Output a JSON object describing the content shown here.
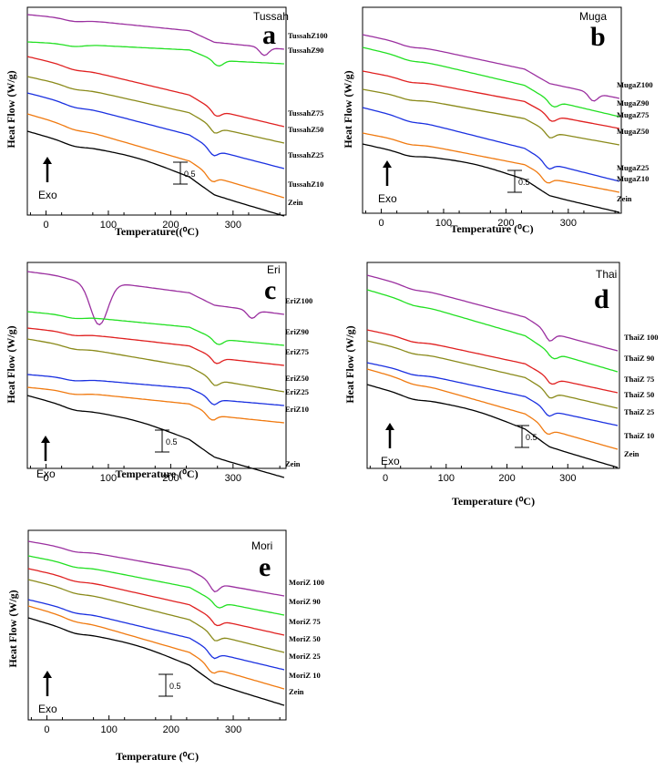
{
  "figure": {
    "description_units": {
      "x": "Temperature (°C)",
      "y": "Heat Flow (W/g)"
    }
  },
  "chart_data": [
    {
      "type": "line",
      "panel": "a",
      "title": "Tussah",
      "xlabel": "Temperature((⁰C)",
      "ylabel": "Heat Flow (W/g)",
      "xlim": [
        -30,
        385
      ],
      "xticks": [
        0,
        100,
        200,
        300
      ],
      "exo_label": "Exo",
      "scale_bar": "0.5",
      "series": [
        {
          "name": "TussahZ100",
          "color": "#9b30a0",
          "offset": 0
        },
        {
          "name": "TussahZ90",
          "color": "#22e022",
          "offset": 1
        },
        {
          "name": "TussahZ75",
          "color": "#e02020",
          "offset": 2
        },
        {
          "name": "TussahZ50",
          "color": "#8a8a1a",
          "offset": 3
        },
        {
          "name": "TussahZ25",
          "color": "#1a30e0",
          "offset": 4
        },
        {
          "name": "TussahZ10",
          "color": "#f07a10",
          "offset": 5
        },
        {
          "name": "Zein",
          "color": "#000000",
          "offset": 6
        }
      ]
    },
    {
      "type": "line",
      "panel": "b",
      "title": "Muga",
      "xlabel": "Temperature (⁰C)",
      "ylabel": "Heat Flow (W/g)",
      "xlim": [
        -30,
        385
      ],
      "xticks": [
        0,
        100,
        200,
        300
      ],
      "exo_label": "Exo",
      "scale_bar": "0.5",
      "series": [
        {
          "name": "MugaZ100",
          "color": "#9b30a0",
          "offset": 0
        },
        {
          "name": "MugaZ90",
          "color": "#22e022",
          "offset": 1
        },
        {
          "name": "MugaZ75",
          "color": "#e02020",
          "offset": 2
        },
        {
          "name": "MugaZ50",
          "color": "#8a8a1a",
          "offset": 3
        },
        {
          "name": "MugaZ25",
          "color": "#1a30e0",
          "offset": 4
        },
        {
          "name": "MugaZ10",
          "color": "#f07a10",
          "offset": 5
        },
        {
          "name": "Zein",
          "color": "#000000",
          "offset": 6
        }
      ]
    },
    {
      "type": "line",
      "panel": "c",
      "title": "Eri",
      "xlabel": "Temperature (⁰C)",
      "ylabel": "Heat Flow (W/g)",
      "xlim": [
        -30,
        385
      ],
      "xticks": [
        0,
        100,
        200,
        300
      ],
      "exo_label": "Exo",
      "scale_bar": "0.5",
      "series": [
        {
          "name": "EriZ100",
          "color": "#9b30a0",
          "offset": 0
        },
        {
          "name": "EriZ90",
          "color": "#22e022",
          "offset": 1
        },
        {
          "name": "EriZ75",
          "color": "#e02020",
          "offset": 2
        },
        {
          "name": "EriZ50",
          "color": "#8a8a1a",
          "offset": 3
        },
        {
          "name": "EriZ25",
          "color": "#1a30e0",
          "offset": 4
        },
        {
          "name": "EriZ10",
          "color": "#f07a10",
          "offset": 5
        },
        {
          "name": "Zein",
          "color": "#000000",
          "offset": 6
        }
      ]
    },
    {
      "type": "line",
      "panel": "d",
      "title": "Thai",
      "xlabel": "Temperature (⁰C)",
      "ylabel": "Heat Flow (W/g)",
      "xlim": [
        -30,
        385
      ],
      "xticks": [
        0,
        100,
        200,
        300
      ],
      "exo_label": "Exo",
      "scale_bar": "0.5",
      "series": [
        {
          "name": "ThaiZ 100",
          "color": "#9b30a0",
          "offset": 0
        },
        {
          "name": "ThaiZ 90",
          "color": "#22e022",
          "offset": 1
        },
        {
          "name": "ThaiZ 75",
          "color": "#e02020",
          "offset": 2
        },
        {
          "name": "ThaiZ 50",
          "color": "#8a8a1a",
          "offset": 3
        },
        {
          "name": "ThaiZ 25",
          "color": "#1a30e0",
          "offset": 4
        },
        {
          "name": "ThaiZ 10",
          "color": "#f07a10",
          "offset": 5
        },
        {
          "name": "Zein",
          "color": "#000000",
          "offset": 6
        }
      ]
    },
    {
      "type": "line",
      "panel": "e",
      "title": "Mori",
      "xlabel": "Temperature (⁰C)",
      "ylabel": "Heat Flow (W/g)",
      "xlim": [
        -30,
        385
      ],
      "xticks": [
        0,
        100,
        200,
        300
      ],
      "exo_label": "Exo",
      "scale_bar": "0.5",
      "series": [
        {
          "name": "MoriZ 100",
          "color": "#9b30a0",
          "offset": 0
        },
        {
          "name": "MoriZ 90",
          "color": "#22e022",
          "offset": 1
        },
        {
          "name": "MoriZ 75",
          "color": "#e02020",
          "offset": 2
        },
        {
          "name": "MoriZ 50",
          "color": "#8a8a1a",
          "offset": 3
        },
        {
          "name": "MoriZ 25",
          "color": "#1a30e0",
          "offset": 4
        },
        {
          "name": "MoriZ 10",
          "color": "#f07a10",
          "offset": 5
        },
        {
          "name": "Zein",
          "color": "#000000",
          "offset": 6
        }
      ]
    }
  ]
}
